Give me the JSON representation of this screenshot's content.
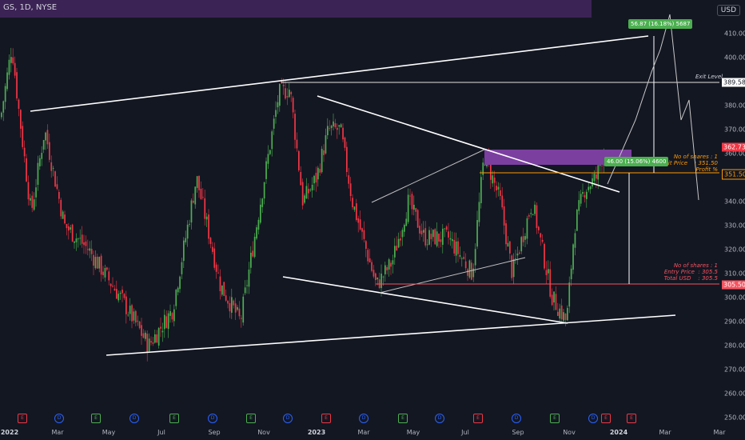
{
  "header": {
    "symbol": "GS, 1D, NYSE",
    "currency": "USD"
  },
  "price_axis": {
    "ticks": [
      "410.00",
      "400.00",
      "390.00",
      "380.00",
      "370.00",
      "360.00",
      "350.00",
      "340.00",
      "330.00",
      "320.00",
      "310.00",
      "300.00",
      "290.00",
      "280.00",
      "270.00",
      "260.00",
      "250.00"
    ],
    "tags": [
      {
        "value": "389.58",
        "bg": "#ffffff",
        "color": "#131722"
      },
      {
        "value": "362.73",
        "bg": "#f23645",
        "color": "#ffffff"
      },
      {
        "value": "351.50",
        "bg": "#131722",
        "color": "#ff9800"
      },
      {
        "value": "305.50",
        "bg": "#f7525f",
        "color": "#ffffff"
      }
    ]
  },
  "time_axis": {
    "labels": [
      {
        "text": "2022",
        "bold": true
      },
      {
        "text": "Mar",
        "bold": false
      },
      {
        "text": "May",
        "bold": false
      },
      {
        "text": "Jul",
        "bold": false
      },
      {
        "text": "Sep",
        "bold": false
      },
      {
        "text": "Nov",
        "bold": false
      },
      {
        "text": "2023",
        "bold": true
      },
      {
        "text": "Mar",
        "bold": false
      },
      {
        "text": "May",
        "bold": false
      },
      {
        "text": "Jul",
        "bold": false
      },
      {
        "text": "Sep",
        "bold": false
      },
      {
        "text": "Nov",
        "bold": false
      },
      {
        "text": "2024",
        "bold": true
      },
      {
        "text": "Mar",
        "bold": false
      },
      {
        "text": "Mar",
        "bold": false
      }
    ]
  },
  "annotations": {
    "exit_level": "Exit Level",
    "exit_block": "No of shares : 1\nExit Price    : 351.50\nProfit %",
    "entry_block": "No of shares : 1\nEntry Price  : 305.5\nTotal USD    : 305.5",
    "measure_top": "56.87 (16.18%) 5687",
    "measure_mid": "46.00 (15.06%) 4600"
  },
  "events": [
    {
      "t": "E",
      "c": "#f23645"
    },
    {
      "t": "D",
      "c": "#2962ff"
    },
    {
      "t": "E",
      "c": "#4caf50"
    },
    {
      "t": "D",
      "c": "#2962ff"
    },
    {
      "t": "E",
      "c": "#4caf50"
    },
    {
      "t": "D",
      "c": "#2962ff"
    },
    {
      "t": "E",
      "c": "#4caf50"
    },
    {
      "t": "D",
      "c": "#2962ff"
    },
    {
      "t": "E",
      "c": "#f23645"
    },
    {
      "t": "D",
      "c": "#2962ff"
    },
    {
      "t": "E",
      "c": "#4caf50"
    },
    {
      "t": "D",
      "c": "#2962ff"
    },
    {
      "t": "E",
      "c": "#f23645"
    },
    {
      "t": "D",
      "c": "#2962ff"
    },
    {
      "t": "E",
      "c": "#4caf50"
    },
    {
      "t": "D",
      "c": "#2962ff"
    },
    {
      "t": "E",
      "c": "#f23645"
    },
    {
      "t": "E",
      "c": "#f23645"
    }
  ],
  "colors": {
    "up": "#26a69a",
    "upbright": "#4caf50",
    "down": "#f23645",
    "bg": "#131722",
    "accent_orange": "#ff9800"
  }
}
